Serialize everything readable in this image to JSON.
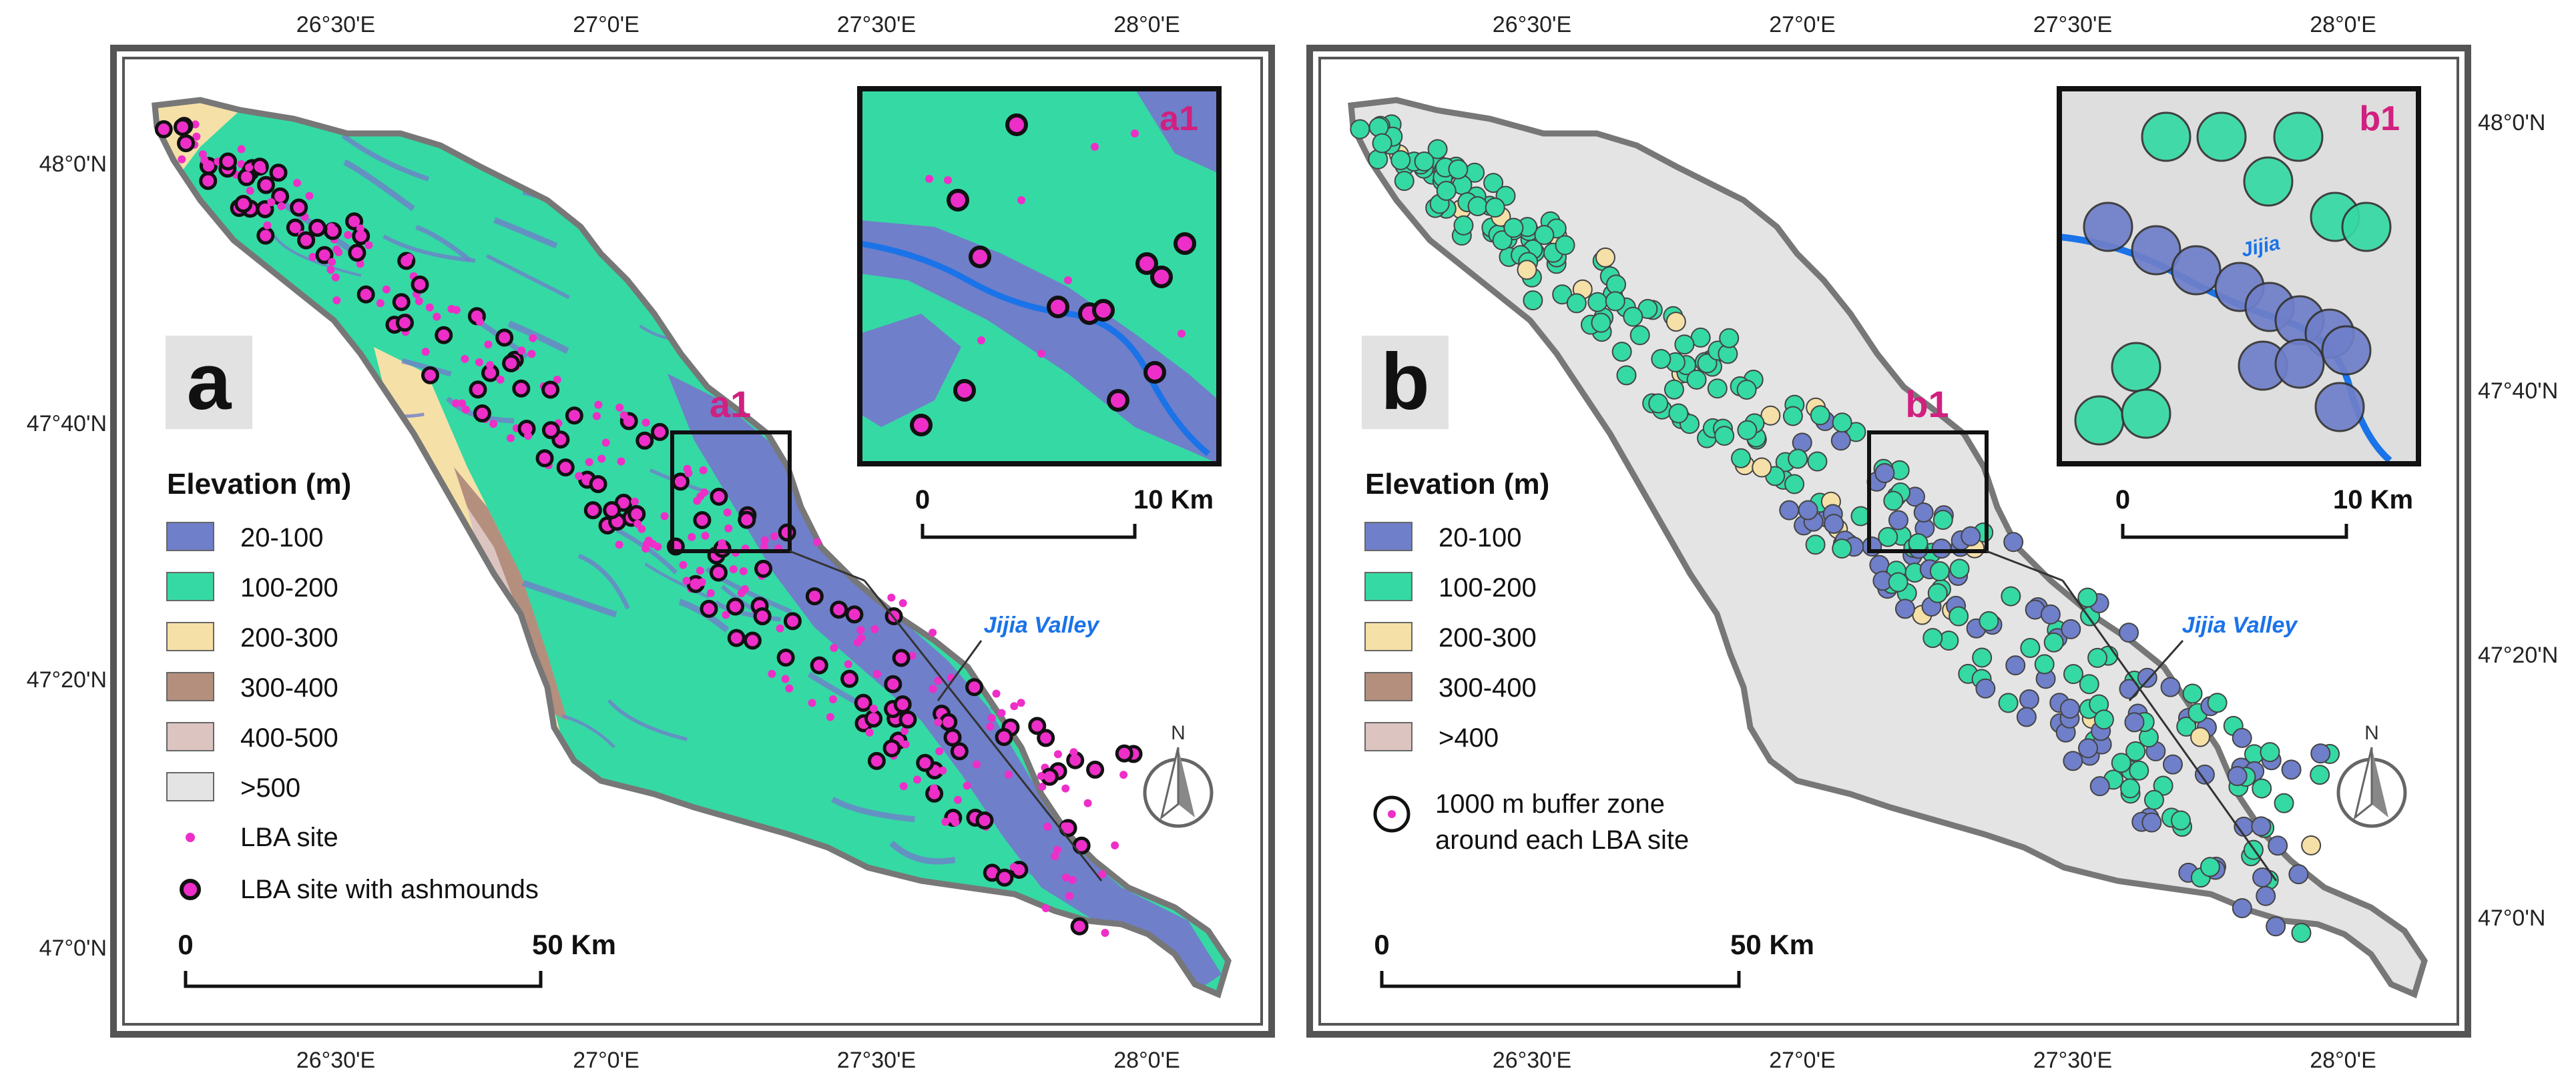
{
  "colors": {
    "elev_20_100": "#6f7fc9",
    "elev_100_200": "#35d9a4",
    "elev_200_300": "#f5e0a7",
    "elev_300_400": "#b48f7e",
    "elev_400_500": "#dcc4c0",
    "elev_500": "#e4e4e4",
    "lba_site": "#ee2ec8",
    "river": "#1a73e8",
    "basin_outline": "#777777"
  },
  "shared": {
    "lon_labels": [
      "26°30'E",
      "27°0'E",
      "27°30'E",
      "28°0'E"
    ],
    "lat_labels": [
      "48°0'N",
      "47°40'N",
      "47°20'N",
      "47°0'N"
    ],
    "valley_label": "Jijia Valley",
    "north_label": "N"
  },
  "panel_a": {
    "letter": "a",
    "inset_zoom_label": "a1",
    "inset_title": "a1",
    "inset_scale": {
      "start": "0",
      "end": "10 Km"
    },
    "legend": {
      "title": "Elevation (m)",
      "items": [
        {
          "label": "20-100",
          "color": "#6f7fc9"
        },
        {
          "label": "100-200",
          "color": "#35d9a4"
        },
        {
          "label": "200-300",
          "color": "#f5e0a7"
        },
        {
          "label": "300-400",
          "color": "#b48f7e"
        },
        {
          "label": "400-500",
          "color": "#dcc4c0"
        },
        {
          "label": ">500",
          "color": "#e4e4e4"
        }
      ],
      "site_label": "LBA site",
      "ash_label": "LBA site with ashmounds"
    },
    "scale": {
      "start": "0",
      "end": "50 Km"
    }
  },
  "panel_b": {
    "letter": "b",
    "inset_zoom_label": "b1",
    "inset_title": "b1",
    "inset_river_label": "Jijia",
    "inset_scale": {
      "start": "0",
      "end": "10 Km"
    },
    "legend": {
      "title": "Elevation (m)",
      "items": [
        {
          "label": "20-100",
          "color": "#6f7fc9"
        },
        {
          "label": "100-200",
          "color": "#35d9a4"
        },
        {
          "label": "200-300",
          "color": "#f5e0a7"
        },
        {
          "label": "300-400",
          "color": "#b48f7e"
        },
        {
          "label": ">400",
          "color": "#dcc4c0"
        }
      ],
      "buffer_label_1": "1000 m buffer zone",
      "buffer_label_2": "around each LBA site"
    },
    "scale": {
      "start": "0",
      "end": "50 Km"
    }
  }
}
